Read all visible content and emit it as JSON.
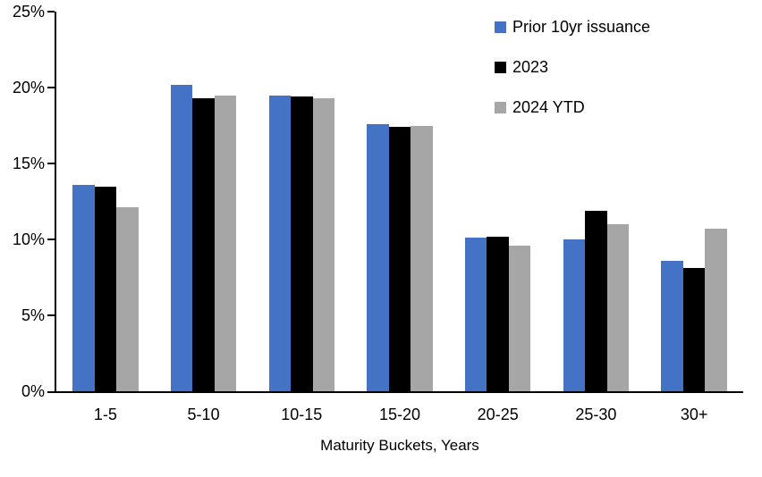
{
  "chart_data": {
    "type": "bar",
    "title": "",
    "xlabel": "Maturity Buckets, Years",
    "ylabel": "",
    "ylim": [
      0,
      25
    ],
    "ytick_values": [
      0,
      5,
      10,
      15,
      20,
      25
    ],
    "ytick_labels": [
      "0%",
      "5%",
      "10%",
      "15%",
      "20%",
      "25%"
    ],
    "grid": false,
    "legend_position": "top-right",
    "axis_color": "#000000",
    "background_color": "#ffffff",
    "categories": [
      "1-5",
      "5-10",
      "10-15",
      "15-20",
      "20-25",
      "25-30",
      "30+"
    ],
    "series": [
      {
        "name": "Prior 10yr issuance",
        "color": "#4472C4",
        "values": [
          13.6,
          20.2,
          19.5,
          17.6,
          10.1,
          10.0,
          8.6
        ]
      },
      {
        "name": "2023",
        "color": "#000000",
        "values": [
          13.5,
          19.3,
          19.4,
          17.4,
          10.2,
          11.9,
          8.1
        ]
      },
      {
        "name": "2024 YTD",
        "color": "#A6A6A6",
        "values": [
          12.1,
          19.5,
          19.3,
          17.5,
          9.6,
          11.0,
          10.7
        ]
      }
    ]
  }
}
